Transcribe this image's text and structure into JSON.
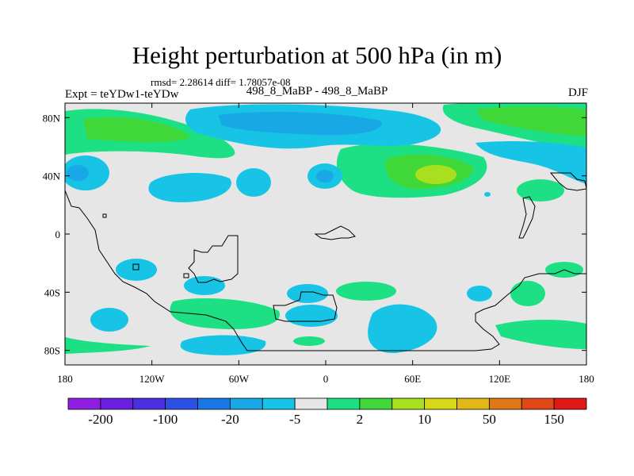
{
  "chart_data": {
    "type": "contour-map",
    "title": "Height perturbation at 500 hPa (in m)",
    "stats_line": "rmsd= 2.28614 diff= 1.78057e-08",
    "left_label": "Expt = teYDw1-teYDw",
    "center_label": "498_8_MaBP - 498_8_MaBP",
    "right_label": "DJF",
    "x_axis": {
      "range": [
        -180,
        180
      ],
      "tick_labels": [
        "180",
        "120W",
        "60W",
        "0",
        "60E",
        "120E",
        "180"
      ]
    },
    "y_axis": {
      "range": [
        -90,
        90
      ],
      "tick_labels": [
        "80N",
        "40N",
        "0",
        "40S",
        "80S"
      ]
    },
    "colorbar": {
      "colors": [
        "#8f1fe0",
        "#6a1fe0",
        "#4a2ee0",
        "#2b50e6",
        "#1a78e6",
        "#18a8e6",
        "#18c4e6",
        "#e6e6e6",
        "#1de085",
        "#40d838",
        "#a8e020",
        "#d8d818",
        "#e0b818",
        "#e07818",
        "#e04818",
        "#e01818"
      ],
      "labels": [
        "-200",
        "-100",
        "-20",
        "-5",
        "2",
        "10",
        "50",
        "150"
      ]
    },
    "background_color": "#e6e6e6"
  }
}
